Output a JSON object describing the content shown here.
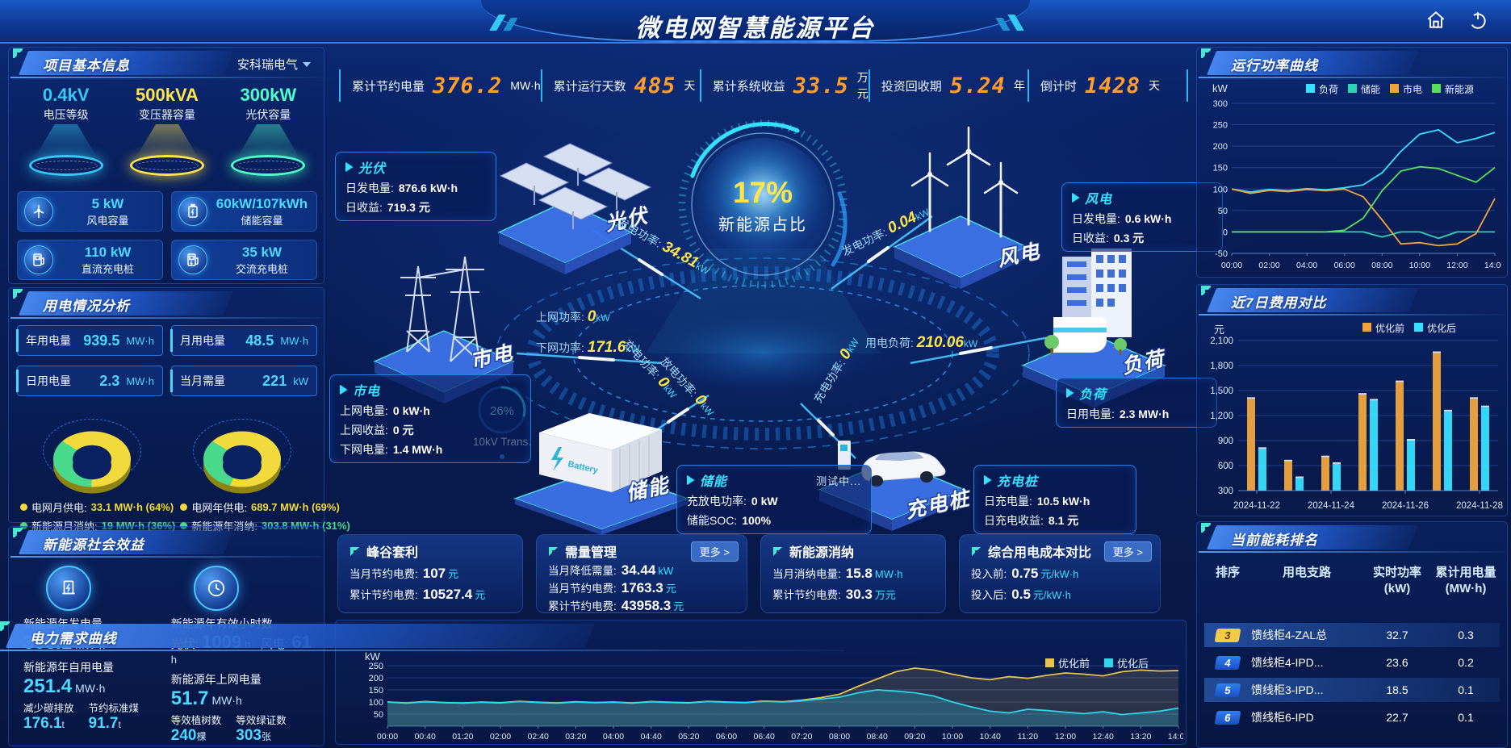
{
  "header": {
    "title": "微电网智慧能源平台"
  },
  "stats_bar": {
    "items": [
      {
        "label": "累计节约电量",
        "value": "376.2",
        "unit": "MW·h"
      },
      {
        "label": "累计运行天数",
        "value": "485",
        "unit": "天"
      },
      {
        "label": "累计系统收益",
        "value": "33.5",
        "unit": "万元"
      },
      {
        "label": "投资回收期",
        "value": "5.24",
        "unit": "年"
      },
      {
        "label": "倒计时",
        "value": "1428",
        "unit": "天"
      }
    ]
  },
  "project_info": {
    "title": "项目基本信息",
    "company": "安科瑞电气",
    "pedestals": [
      {
        "value": "0.4kV",
        "label": "电压等级",
        "color": "#35c9f5"
      },
      {
        "value": "500kVA",
        "label": "变压器容量",
        "color": "#ffe54a"
      },
      {
        "value": "300kW",
        "label": "光伏容量",
        "color": "#4dffc8"
      }
    ],
    "cards": [
      {
        "value": "5 kW",
        "label": "风电容量"
      },
      {
        "value": "60kW/107kWh",
        "label": "储能容量"
      },
      {
        "value": "110 kW",
        "label": "直流充电桩"
      },
      {
        "value": "35 kW",
        "label": "交流充电桩"
      }
    ]
  },
  "power_usage": {
    "title": "用电情况分析",
    "chips": [
      {
        "label": "年用电量",
        "value": "939.5",
        "unit": "MW·h"
      },
      {
        "label": "月用电量",
        "value": "48.5",
        "unit": "MW·h"
      },
      {
        "label": "日用电量",
        "value": "2.3",
        "unit": "MW·h"
      },
      {
        "label": "当月需量",
        "value": "221",
        "unit": "kW"
      }
    ],
    "donut_month": {
      "type": "pie",
      "slices": [
        {
          "name": "电网月供电",
          "value": 64,
          "color": "#f2d93c"
        },
        {
          "name": "新能源月消纳",
          "value": 36,
          "color": "#49d98a"
        }
      ]
    },
    "donut_year": {
      "type": "pie",
      "slices": [
        {
          "name": "电网年供电",
          "value": 69,
          "color": "#f2d93c"
        },
        {
          "name": "新能源年消纳",
          "value": 31,
          "color": "#49d98a"
        }
      ]
    },
    "legend": [
      {
        "name": "电网月供电:",
        "value": "33.1 MW·h (64%)",
        "color": "#f2d93c"
      },
      {
        "name": "电网年供电:",
        "value": "689.7 MW·h (69%)",
        "color": "#f2d93c"
      },
      {
        "name": "新能源月消纳:",
        "value": "19 MW·h (36%)",
        "color": "#49d98a"
      },
      {
        "name": "新能源年消纳:",
        "value": "303.8 MW·h (31%)",
        "color": "#49d98a"
      }
    ]
  },
  "social_benefit": {
    "title": "新能源社会效益",
    "col1": {
      "row1": {
        "label": "新能源年发电量",
        "value": "303.1",
        "unit": "MW·h"
      },
      "row2": {
        "label": "新能源年自用电量",
        "value": "251.4",
        "unit": "MW·h"
      },
      "small": [
        {
          "label": "减少碳排放",
          "value": "176.1",
          "unit": "t"
        },
        {
          "label": "节约标准煤",
          "value": "91.7",
          "unit": "t"
        }
      ]
    },
    "col2": {
      "hours_label": "新能源年有效小时数",
      "hours": [
        {
          "label": "光伏:",
          "value": "1009",
          "unit": "h"
        },
        {
          "label": "风电:",
          "value": "61",
          "unit": "h"
        }
      ],
      "row2": {
        "label": "新能源年上网电量",
        "value": "51.7",
        "unit": "MW·h"
      },
      "small": [
        {
          "label": "等效植树数",
          "value": "240",
          "unit": "棵"
        },
        {
          "label": "等效绿证数",
          "value": "303",
          "unit": "张"
        }
      ]
    }
  },
  "center": {
    "hub": {
      "value": "17%",
      "label": "新能源占比"
    },
    "gauge": {
      "value": "26%",
      "label": "10kV Trans."
    },
    "nodes": [
      {
        "label": "光伏"
      },
      {
        "label": "风电"
      },
      {
        "label": "市电"
      },
      {
        "label": "储能"
      },
      {
        "label": "充电桩"
      },
      {
        "label": "负荷"
      }
    ],
    "flows": [
      {
        "label": "发电功率:",
        "value": "34.81",
        "unit": "kW"
      },
      {
        "label": "上网功率:",
        "value": "0",
        "unit": "kW"
      },
      {
        "label": "下网功率:",
        "value": "171.6",
        "unit": "kW"
      },
      {
        "label": "发电功率:",
        "value": "0.04",
        "unit": "kW"
      },
      {
        "label": "用电负荷:",
        "value": "210.06",
        "unit": "kW"
      },
      {
        "label": "充电功率:",
        "value": "0",
        "unit": "kW"
      },
      {
        "label": "放电功率:",
        "value": "0",
        "unit": "kW"
      },
      {
        "label": "充电功率:",
        "value": "0",
        "unit": "kW"
      }
    ],
    "cards": {
      "pv": {
        "title": "光伏",
        "rows": [
          {
            "label": "日发电量:",
            "value": "876.6 kW·h"
          },
          {
            "label": "日收益:",
            "value": "719.3 元"
          }
        ]
      },
      "wind": {
        "title": "风电",
        "rows": [
          {
            "label": "日发电量:",
            "value": "0.6 kW·h"
          },
          {
            "label": "日收益:",
            "value": "0.3 元"
          }
        ]
      },
      "grid": {
        "title": "市电",
        "rows": [
          {
            "label": "上网电量:",
            "value": "0 kW·h"
          },
          {
            "label": "上网收益:",
            "value": "0 元"
          },
          {
            "label": "下网电量:",
            "value": "1.4 MW·h"
          }
        ]
      },
      "storage": {
        "title": "储能",
        "badge": "测试中...",
        "rows": [
          {
            "label": "充放电功率:",
            "value": "0 kW"
          },
          {
            "label": "储能SOC:",
            "value": "100%"
          }
        ]
      },
      "charger": {
        "title": "充电桩",
        "rows": [
          {
            "label": "日充电量:",
            "value": "10.5 kW·h"
          },
          {
            "label": "日充电收益:",
            "value": "8.1 元"
          }
        ]
      },
      "load": {
        "title": "负荷",
        "rows": [
          {
            "label": "日用电量:",
            "value": "2.3 MW·h"
          }
        ]
      }
    }
  },
  "mini_panels": [
    {
      "title": "峰谷套利",
      "rows": [
        {
          "label": "当月节约电费:",
          "value": "107",
          "unit": "元"
        },
        {
          "label": "累计节约电费:",
          "value": "10527.4",
          "unit": "元"
        }
      ]
    },
    {
      "title": "需量管理",
      "more": "更多 >",
      "rows": [
        {
          "label": "当月降低需量:",
          "value": "34.44",
          "unit": "kW"
        },
        {
          "label": "当月节约电费:",
          "value": "1763.3",
          "unit": "元"
        },
        {
          "label": "累计节约电费:",
          "value": "43958.3",
          "unit": "元"
        }
      ]
    },
    {
      "title": "新能源消纳",
      "rows": [
        {
          "label": "当月消纳电量:",
          "value": "15.8",
          "unit": "MW·h"
        },
        {
          "label": "累计节约电费:",
          "value": "30.3",
          "unit": "万元"
        }
      ]
    },
    {
      "title": "综合用电成本对比",
      "more": "更多 >",
      "rows": [
        {
          "label": "投入前:",
          "value": "0.75",
          "unit": "元/kW·h"
        },
        {
          "label": "投入后:",
          "value": "0.5",
          "unit": "元/kW·h"
        }
      ]
    }
  ],
  "demand_panel": {
    "title": "电力需求曲线",
    "unit": "kW",
    "chart_data": {
      "type": "line",
      "x_labels": [
        "00:00",
        "00:40",
        "01:20",
        "02:00",
        "02:40",
        "03:20",
        "04:00",
        "04:40",
        "05:20",
        "06:00",
        "06:40",
        "07:20",
        "08:00",
        "08:40",
        "09:20",
        "10:00",
        "10:40",
        "11:20",
        "12:00",
        "12:40",
        "13:20",
        "14:00"
      ],
      "ylim": [
        0,
        280
      ],
      "yticks": [
        250,
        200,
        150,
        100,
        50
      ],
      "series": [
        {
          "name": "优化前",
          "color": "#e8c44d",
          "fill": "rgba(230,195,80,0.16)",
          "values": [
            100,
            96,
            102,
            98,
            95,
            100,
            97,
            103,
            99,
            96,
            101,
            98,
            100,
            96,
            102,
            99,
            97,
            103,
            100,
            98,
            104,
            101,
            108,
            118,
            132,
            165,
            195,
            225,
            240,
            232,
            215,
            200,
            192,
            205,
            198,
            210,
            220,
            215,
            208,
            225,
            232,
            228,
            230
          ]
        },
        {
          "name": "优化后",
          "color": "#2fd8e8",
          "fill": "rgba(40,200,230,0.25)",
          "values": [
            100,
            95,
            101,
            97,
            96,
            99,
            96,
            102,
            98,
            95,
            100,
            97,
            99,
            95,
            101,
            98,
            96,
            102,
            99,
            97,
            103,
            100,
            105,
            112,
            120,
            138,
            150,
            145,
            138,
            125,
            100,
            80,
            62,
            55,
            70,
            65,
            58,
            52,
            60,
            48,
            55,
            62,
            75
          ]
        }
      ]
    }
  },
  "right": {
    "power_curve": {
      "title": "运行功率曲线",
      "unit": "kW",
      "chart_data": {
        "type": "line",
        "x_labels": [
          "00:00",
          "02:00",
          "04:00",
          "06:00",
          "08:00",
          "10:00",
          "12:00",
          "14:00"
        ],
        "ylim": [
          -50,
          300
        ],
        "yticks": [
          300,
          250,
          200,
          150,
          100,
          50,
          0,
          -50
        ],
        "series": [
          {
            "name": "负荷",
            "color": "#35e1ff",
            "values": [
              100,
              93,
              99,
              96,
              101,
              98,
              103,
              110,
              138,
              188,
              228,
              238,
              208,
              218,
              232
            ]
          },
          {
            "name": "储能",
            "color": "#2fd3b1",
            "values": [
              0,
              0,
              0,
              0,
              0,
              0,
              0,
              0,
              -12,
              0,
              0,
              -15,
              0,
              0,
              0
            ]
          },
          {
            "name": "市电",
            "color": "#f0a53c",
            "values": [
              100,
              90,
              97,
              94,
              99,
              96,
              100,
              82,
              28,
              -28,
              -25,
              -32,
              -28,
              -4,
              78
            ]
          },
          {
            "name": "新能源",
            "color": "#5be05b",
            "values": [
              0,
              0,
              0,
              0,
              0,
              0,
              4,
              32,
              96,
              142,
              152,
              148,
              132,
              116,
              150
            ]
          }
        ]
      }
    },
    "cost_compare": {
      "title": "近7日费用对比",
      "unit": "元",
      "chart_data": {
        "type": "bar",
        "categories": [
          "2024-11-22",
          "2024-11-23",
          "2024-11-24",
          "2024-11-25",
          "2024-11-26",
          "2024-11-27",
          "2024-11-28"
        ],
        "x_tick_labels": [
          "2024-11-22",
          "2024-11-24",
          "2024-11-26",
          "2024-11-28"
        ],
        "x_tick_indices": [
          0,
          2,
          4,
          6
        ],
        "ylim": [
          300,
          2100
        ],
        "yticks": [
          2100,
          1800,
          1500,
          1200,
          900,
          600,
          300
        ],
        "ytick_labels": [
          "2,100",
          "1,800",
          "1,500",
          "1,200",
          "900",
          "600",
          "300"
        ],
        "series": [
          {
            "name": "优化前",
            "color": "#f0a53c",
            "values": [
              1400,
              650,
              700,
              1450,
              1600,
              1950,
              1400
            ]
          },
          {
            "name": "优化后",
            "color": "#35e1ff",
            "values": [
              800,
              450,
              620,
              1380,
              900,
              1250,
              1300
            ]
          }
        ]
      }
    },
    "ranking": {
      "title": "当前能耗排名",
      "columns": [
        "排序",
        "用电支路",
        "实时功率 (kW)",
        "累计用电量 (MW·h)"
      ],
      "rows": [
        {
          "rank": "3",
          "name": "馈线柜4-ZAL总",
          "power": "32.7",
          "energy": "0.3",
          "badge": "gold",
          "highlight": true
        },
        {
          "rank": "4",
          "name": "馈线柜4-IPD...",
          "power": "23.6",
          "energy": "0.2",
          "badge": "blue",
          "highlight": false
        },
        {
          "rank": "5",
          "name": "馈线柜3-IPD...",
          "power": "18.5",
          "energy": "0.1",
          "badge": "blue",
          "highlight": true
        },
        {
          "rank": "6",
          "name": "馈线柜6-IPD",
          "power": "22.7",
          "energy": "0.1",
          "badge": "blue",
          "highlight": false
        }
      ]
    }
  }
}
